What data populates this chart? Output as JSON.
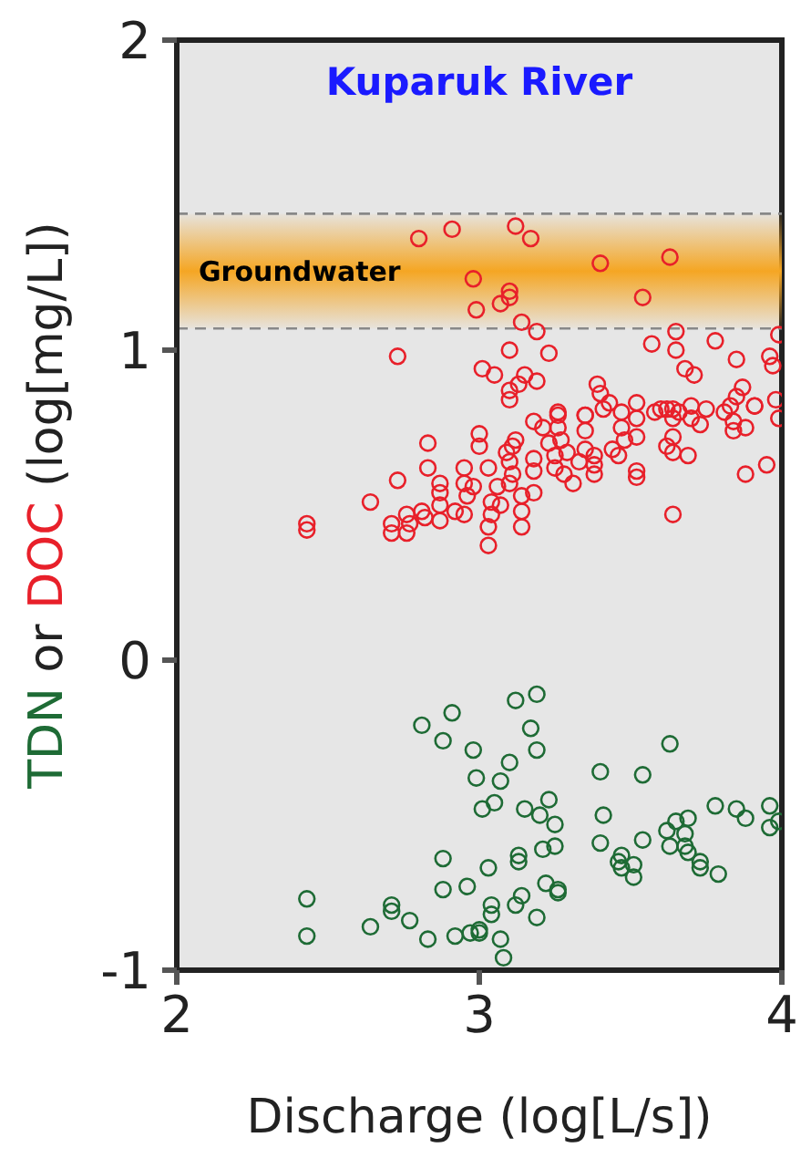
{
  "chart_data": {
    "type": "scatter",
    "title": "Kuparuk River",
    "xlabel": "Discharge (log[L/s])",
    "ylabel": "TDN or DOC (log[mg/L])",
    "xlim": [
      2,
      4
    ],
    "xticks": [
      2,
      3,
      4
    ],
    "ylim": [
      -1,
      2
    ],
    "yticks": [
      -1,
      0,
      1,
      2
    ],
    "legend": false,
    "marker": "circle",
    "ref_lines": [
      {
        "axis": "y",
        "value": 1.07,
        "color": "#888888",
        "line_style": "dashed"
      },
      {
        "axis": "y",
        "value": 1.44,
        "color": "#888888",
        "line_style": "dashed"
      }
    ],
    "bands": [
      {
        "axis": "y",
        "from": 1.07,
        "to": 1.44,
        "label": "Groundwater",
        "color": "#f5a623"
      }
    ],
    "series": [
      {
        "color": "#e8202a",
        "x": [
          2.8,
          2.91,
          3.12,
          3.17,
          3.4,
          3.63,
          2.98,
          3.1,
          3.1,
          3.07,
          2.99,
          3.54,
          3.14,
          3.19,
          3.65,
          3.99,
          2.73,
          3.1,
          3.23,
          3.57,
          3.65,
          3.78,
          3.85,
          3.96,
          3.97,
          3.01,
          3.05,
          3.15,
          3.19,
          3.13,
          3.1,
          3.1,
          3.68,
          3.71,
          3.39,
          3.4,
          3.87,
          3.98,
          3.43,
          3.52,
          3.6,
          3.64,
          3.7,
          3.75,
          3.83,
          3.85,
          3.91,
          3.99,
          3.18,
          3.26,
          3.35,
          3.47,
          3.26,
          3.26,
          3.35,
          3.35,
          3.41,
          3.47,
          3.52,
          3.52,
          3.58,
          3.62,
          3.64,
          3.66,
          3.7,
          3.73,
          3.81,
          3.84,
          3.84,
          3.88,
          3.91,
          3.0,
          3.0,
          2.83,
          2.83,
          2.73,
          2.64,
          2.43,
          2.43,
          2.71,
          2.71,
          2.76,
          2.77,
          2.76,
          2.81,
          2.82,
          2.87,
          2.87,
          2.87,
          2.87,
          2.92,
          2.95,
          2.95,
          2.95,
          2.96,
          2.98,
          3.03,
          3.04,
          3.04,
          3.03,
          3.03,
          3.06,
          3.07,
          3.09,
          3.1,
          3.11,
          3.1,
          3.12,
          3.11,
          3.14,
          3.14,
          3.14,
          3.18,
          3.18,
          3.18,
          3.21,
          3.23,
          3.25,
          3.25,
          3.27,
          3.29,
          3.28,
          3.31,
          3.33,
          3.35,
          3.38,
          3.38,
          3.38,
          3.44,
          3.46,
          3.48,
          3.52,
          3.52,
          3.62,
          3.64,
          3.64,
          3.69,
          3.64,
          3.88,
          3.95
        ],
        "values": [
          1.36,
          1.39,
          1.4,
          1.36,
          1.28,
          1.3,
          1.23,
          1.19,
          1.17,
          1.15,
          1.13,
          1.17,
          1.09,
          1.06,
          1.06,
          1.05,
          0.98,
          1.0,
          0.99,
          1.02,
          1.0,
          1.03,
          0.97,
          0.98,
          0.95,
          0.94,
          0.92,
          0.92,
          0.9,
          0.89,
          0.87,
          0.84,
          0.94,
          0.92,
          0.89,
          0.86,
          0.88,
          0.84,
          0.83,
          0.83,
          0.81,
          0.81,
          0.82,
          0.81,
          0.82,
          0.85,
          0.82,
          0.78,
          0.77,
          0.8,
          0.79,
          0.8,
          0.79,
          0.75,
          0.79,
          0.74,
          0.81,
          0.75,
          0.78,
          0.72,
          0.8,
          0.81,
          0.78,
          0.8,
          0.78,
          0.76,
          0.8,
          0.77,
          0.74,
          0.75,
          0.82,
          0.73,
          0.69,
          0.7,
          0.62,
          0.58,
          0.51,
          0.44,
          0.42,
          0.44,
          0.41,
          0.47,
          0.44,
          0.41,
          0.48,
          0.46,
          0.57,
          0.54,
          0.5,
          0.45,
          0.48,
          0.47,
          0.62,
          0.57,
          0.53,
          0.56,
          0.62,
          0.51,
          0.47,
          0.43,
          0.37,
          0.56,
          0.5,
          0.67,
          0.64,
          0.6,
          0.57,
          0.71,
          0.69,
          0.53,
          0.48,
          0.43,
          0.65,
          0.61,
          0.54,
          0.75,
          0.7,
          0.66,
          0.62,
          0.71,
          0.67,
          0.6,
          0.57,
          0.64,
          0.68,
          0.63,
          0.6,
          0.66,
          0.68,
          0.66,
          0.71,
          0.61,
          0.59,
          0.69,
          0.67,
          0.72,
          0.66,
          0.47,
          0.6,
          0.63
        ]
      },
      {
        "color": "#1e6b35",
        "x": [
          3.19,
          3.12,
          2.91,
          2.81,
          2.88,
          3.17,
          3.19,
          2.98,
          3.1,
          2.99,
          3.07,
          3.63,
          3.4,
          3.54,
          3.01,
          3.05,
          3.15,
          3.2,
          3.23,
          3.25,
          3.41,
          3.78,
          3.85,
          3.88,
          3.96,
          3.96,
          3.99,
          3.62,
          3.65,
          3.69,
          3.68,
          3.63,
          3.68,
          3.69,
          3.73,
          3.73,
          3.79,
          3.4,
          3.47,
          3.46,
          3.47,
          3.51,
          3.51,
          3.54,
          3.21,
          3.25,
          3.13,
          3.13,
          3.03,
          2.88,
          2.88,
          2.96,
          3.22,
          3.26,
          3.26,
          3.14,
          3.12,
          3.19,
          3.04,
          3.04,
          2.43,
          2.43,
          2.71,
          2.71,
          2.77,
          2.64,
          2.83,
          2.92,
          2.97,
          3.0,
          3.0,
          3.07,
          3.08
        ],
        "values": [
          -0.11,
          -0.13,
          -0.17,
          -0.21,
          -0.26,
          -0.22,
          -0.29,
          -0.29,
          -0.33,
          -0.38,
          -0.39,
          -0.27,
          -0.36,
          -0.37,
          -0.48,
          -0.46,
          -0.48,
          -0.5,
          -0.45,
          -0.53,
          -0.5,
          -0.47,
          -0.48,
          -0.51,
          -0.47,
          -0.54,
          -0.52,
          -0.55,
          -0.52,
          -0.51,
          -0.56,
          -0.6,
          -0.6,
          -0.62,
          -0.65,
          -0.67,
          -0.69,
          -0.59,
          -0.63,
          -0.65,
          -0.67,
          -0.66,
          -0.7,
          -0.58,
          -0.61,
          -0.6,
          -0.63,
          -0.65,
          -0.67,
          -0.64,
          -0.74,
          -0.73,
          -0.72,
          -0.74,
          -0.75,
          -0.76,
          -0.79,
          -0.83,
          -0.79,
          -0.82,
          -0.77,
          -0.89,
          -0.79,
          -0.81,
          -0.84,
          -0.86,
          -0.9,
          -0.89,
          -0.88,
          -0.88,
          -0.87,
          -0.9,
          -0.96
        ]
      }
    ]
  }
}
